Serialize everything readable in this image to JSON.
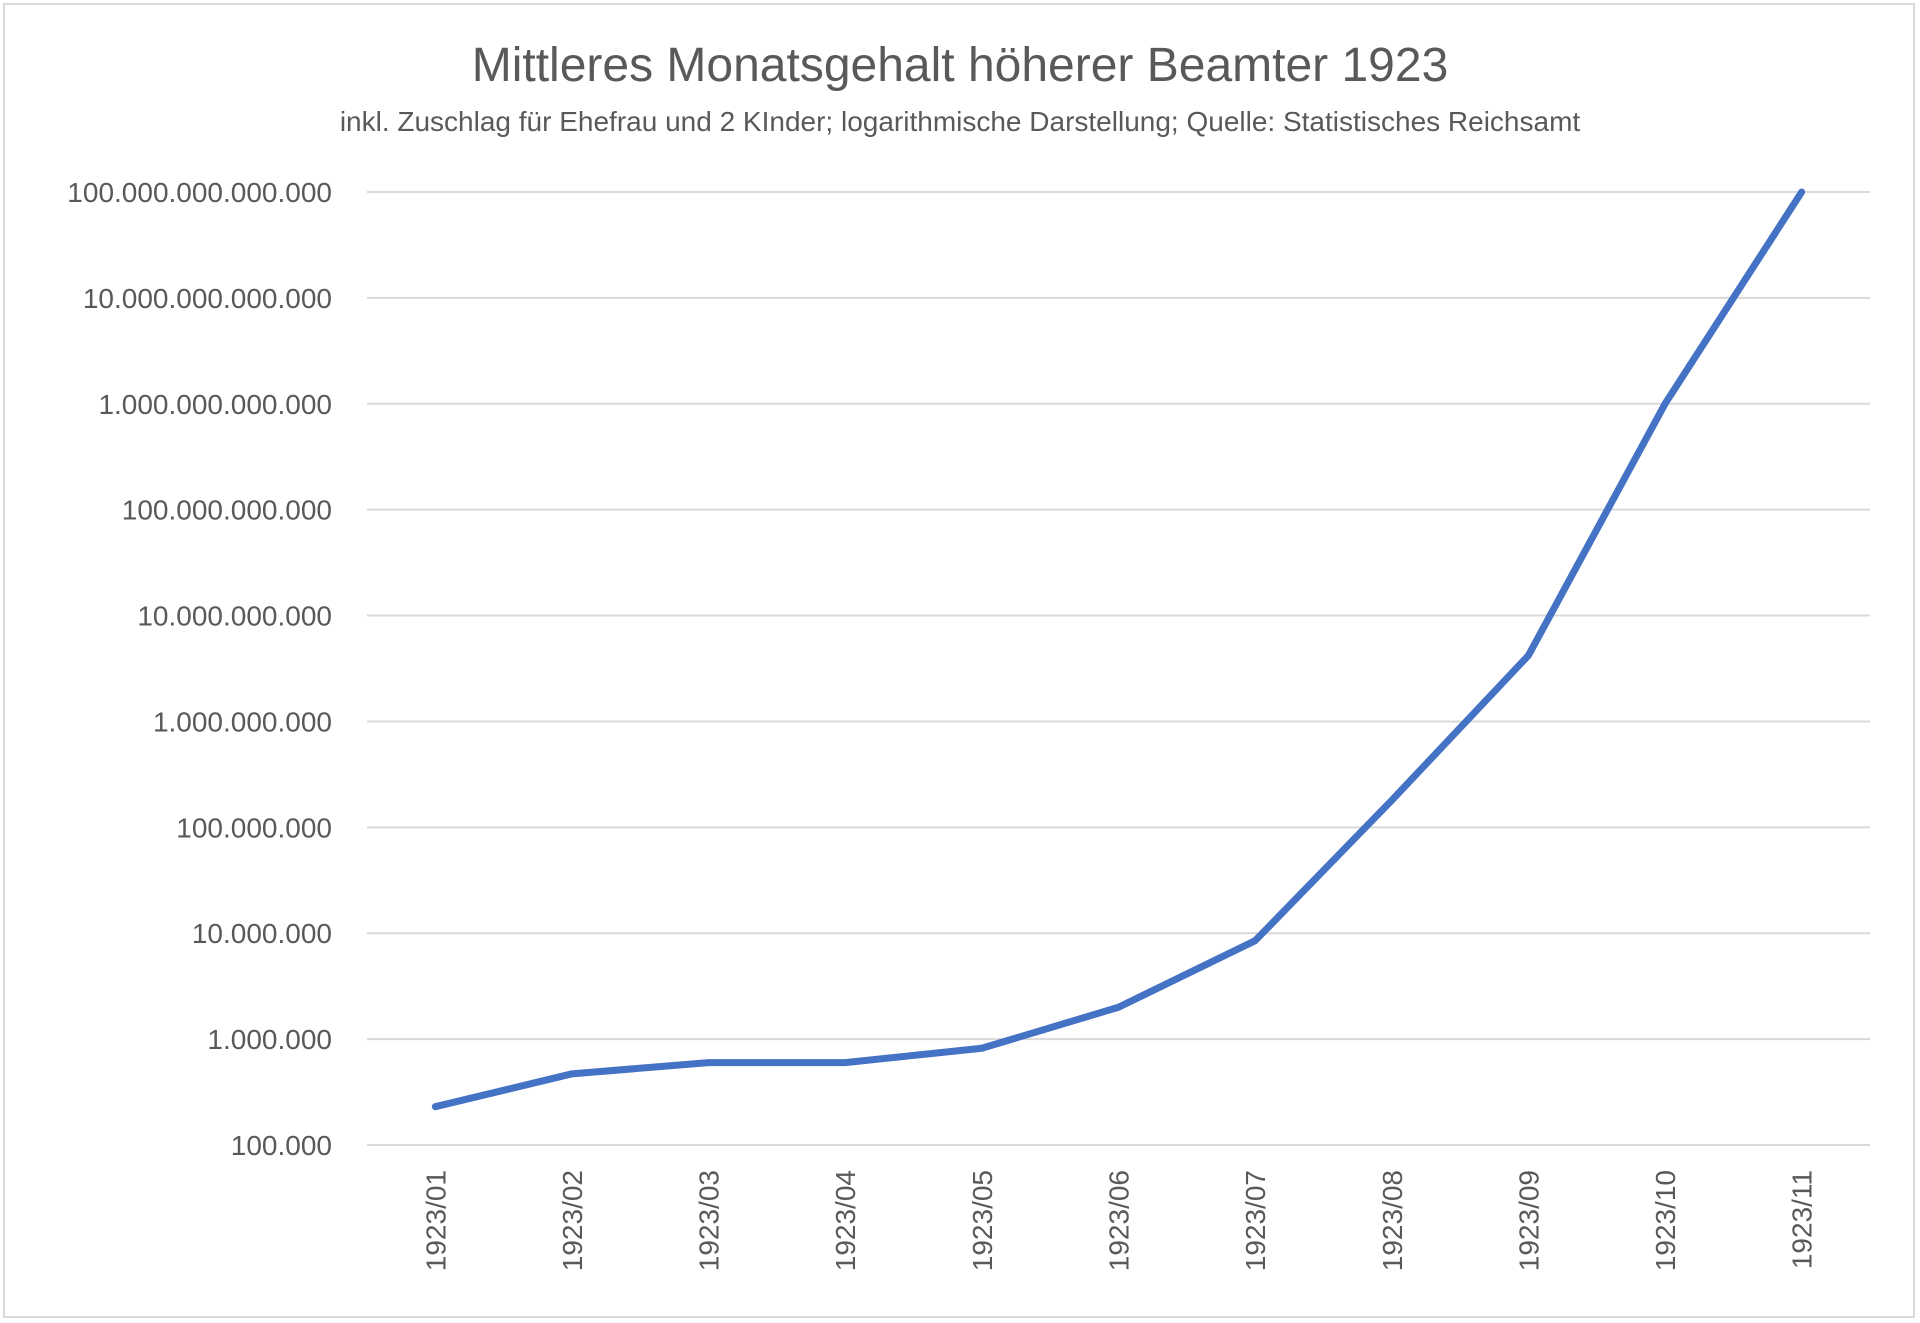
{
  "chart_data": {
    "type": "line",
    "title": "Mittleres Monatsgehalt höherer Beamter 1923",
    "subtitle": "inkl. Zuschlag für Ehefrau und 2 KInder; logarithmische Darstellung; Quelle: Statistisches Reichsamt",
    "xlabel": "",
    "ylabel": "",
    "y_scale": "log",
    "ylim": [
      100000,
      100000000000000
    ],
    "y_tick_labels": [
      "100.000",
      "1.000.000",
      "10.000.000",
      "100.000.000",
      "1.000.000.000",
      "10.000.000.000",
      "100.000.000.000",
      "1.000.000.000.000",
      "10.000.000.000.000",
      "100.000.000.000.000"
    ],
    "categories": [
      "1923/01",
      "1923/02",
      "1923/03",
      "1923/04",
      "1923/05",
      "1923/06",
      "1923/07",
      "1923/08",
      "1923/09",
      "1923/10",
      "1923/11"
    ],
    "series": [
      {
        "values": [
          230000,
          470000,
          600000,
          600000,
          820000,
          2000000,
          8500000,
          180000000,
          4200000000,
          1000000000000,
          100000000000000
        ],
        "color": "#4472C4"
      }
    ],
    "grid": true,
    "legend": "none"
  }
}
